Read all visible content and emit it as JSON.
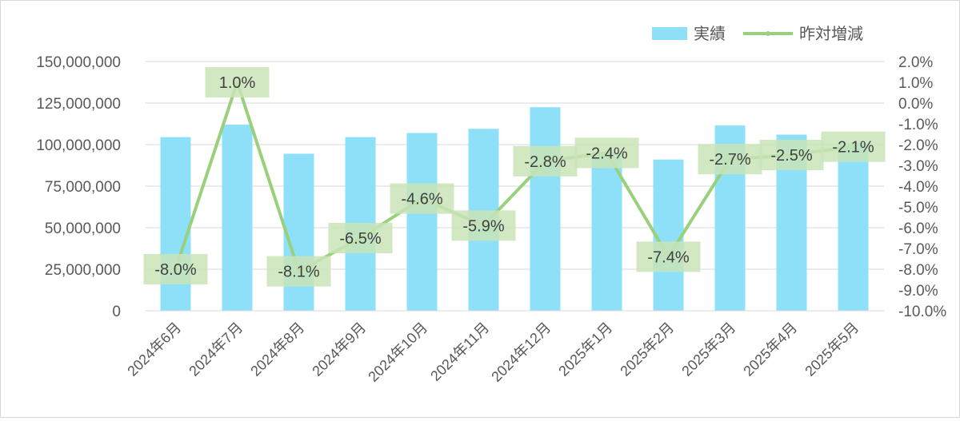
{
  "chart_data": {
    "type": "bar",
    "categories": [
      "2024年6月",
      "2024年7月",
      "2024年8月",
      "2024年9月",
      "2024年10月",
      "2024年11月",
      "2024年12月",
      "2025年1月",
      "2025年2月",
      "2025年3月",
      "2025年4月",
      "2025年5月"
    ],
    "series": [
      {
        "name": "実績",
        "type": "bar",
        "axis": "left",
        "color": "#8ee0f9",
        "values": [
          104500000,
          112000000,
          94500000,
          104500000,
          107000000,
          109500000,
          122500000,
          95500000,
          91000000,
          111500000,
          106000000,
          101000000
        ]
      },
      {
        "name": "昨対増減",
        "type": "line",
        "axis": "right",
        "color": "#99d07c",
        "values": [
          -8.0,
          1.0,
          -8.1,
          -6.5,
          -4.6,
          -5.9,
          -2.8,
          -2.4,
          -7.4,
          -2.7,
          -2.5,
          -2.1
        ],
        "data_labels": [
          "-8.0%",
          "1.0%",
          "-8.1%",
          "-6.5%",
          "-4.6%",
          "-5.9%",
          "-2.8%",
          "-2.4%",
          "-7.4%",
          "-2.7%",
          "-2.5%",
          "-2.1%"
        ]
      }
    ],
    "y_left": {
      "ylim": [
        0,
        150000000
      ],
      "ticks": [
        0,
        25000000,
        50000000,
        75000000,
        100000000,
        125000000,
        150000000
      ],
      "tick_labels": [
        "0",
        "25,000,000",
        "50,000,000",
        "75,000,000",
        "100,000,000",
        "125,000,000",
        "150,000,000"
      ]
    },
    "y_right": {
      "ylim": [
        -10.0,
        2.0
      ],
      "tick_labels": [
        "2.0%",
        "1.0%",
        "0.0%",
        "-1.0%",
        "-2.0%",
        "-3.0%",
        "-4.0%",
        "-5.0%",
        "-6.0%",
        "-7.0%",
        "-8.0%",
        "-9.0%",
        "-10.0%"
      ]
    },
    "grid": true,
    "legend_position": "top-right",
    "label_box_color": "#c9e4b9"
  }
}
